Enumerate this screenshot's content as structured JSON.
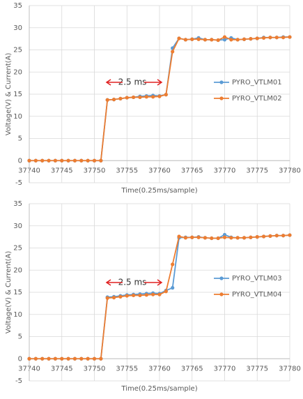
{
  "chart_data": [
    {
      "type": "line",
      "xlabel": "Time(0.25ms/sample)",
      "ylabel": "Voltage(V) & Current(A)",
      "annotation": "2.5 ms",
      "x": [
        37740,
        37741,
        37742,
        37743,
        37744,
        37745,
        37746,
        37747,
        37748,
        37749,
        37750,
        37751,
        37752,
        37753,
        37754,
        37755,
        37756,
        37757,
        37758,
        37759,
        37760,
        37761,
        37762,
        37763,
        37764,
        37765,
        37766,
        37767,
        37768,
        37769,
        37770,
        37771,
        37772,
        37773,
        37774,
        37775,
        37776,
        37777,
        37778,
        37779,
        37780
      ],
      "series": [
        {
          "name": "PYRO_VTLM01",
          "color": "#5b9bd5",
          "values": [
            0,
            0,
            0,
            0,
            0,
            0,
            0,
            0,
            0,
            0,
            0,
            0,
            13.7,
            13.8,
            14.0,
            14.2,
            14.3,
            14.5,
            14.6,
            14.7,
            14.6,
            14.9,
            25.4,
            27.6,
            27.3,
            27.4,
            27.7,
            27.3,
            27.3,
            27.2,
            27.3,
            27.7,
            27.3,
            27.4,
            27.5,
            27.6,
            27.8,
            27.8,
            27.8,
            27.9,
            27.9
          ]
        },
        {
          "name": "PYRO_VTLM02",
          "color": "#ed7d31",
          "values": [
            0,
            0,
            0,
            0,
            0,
            0,
            0,
            0,
            0,
            0,
            0,
            0,
            13.7,
            13.8,
            14.0,
            14.2,
            14.3,
            14.3,
            14.4,
            14.4,
            14.5,
            14.9,
            24.6,
            27.6,
            27.3,
            27.4,
            27.4,
            27.3,
            27.3,
            27.2,
            27.9,
            27.3,
            27.3,
            27.4,
            27.5,
            27.6,
            27.7,
            27.8,
            27.8,
            27.8,
            27.9
          ]
        }
      ],
      "xlim": [
        37740,
        37780
      ],
      "xticks": [
        37740,
        37745,
        37750,
        37755,
        37760,
        37765,
        37770,
        37775,
        37780
      ],
      "ylim": [
        -5,
        35
      ],
      "yticks": [
        -5,
        0,
        5,
        10,
        15,
        20,
        25,
        30,
        35
      ],
      "grid": true
    },
    {
      "type": "line",
      "xlabel": "Time(0.25ms/sample)",
      "ylabel": "Voltage(V) & Current(A)",
      "annotation": "2.5 ms",
      "x": [
        37740,
        37741,
        37742,
        37743,
        37744,
        37745,
        37746,
        37747,
        37748,
        37749,
        37750,
        37751,
        37752,
        37753,
        37754,
        37755,
        37756,
        37757,
        37758,
        37759,
        37760,
        37761,
        37762,
        37763,
        37764,
        37765,
        37766,
        37767,
        37768,
        37769,
        37770,
        37771,
        37772,
        37773,
        37774,
        37775,
        37776,
        37777,
        37778,
        37779,
        37780
      ],
      "series": [
        {
          "name": "PYRO_VTLM03",
          "color": "#5b9bd5",
          "values": [
            0,
            0,
            0,
            0,
            0,
            0,
            0,
            0,
            0,
            0,
            0,
            0,
            13.9,
            14.0,
            14.2,
            14.4,
            14.5,
            14.6,
            14.7,
            14.8,
            14.7,
            15.4,
            16.0,
            27.3,
            27.4,
            27.4,
            27.5,
            27.3,
            27.2,
            27.2,
            28.0,
            27.4,
            27.3,
            27.3,
            27.4,
            27.5,
            27.6,
            27.7,
            27.8,
            27.8,
            27.9
          ]
        },
        {
          "name": "PYRO_VTLM04",
          "color": "#ed7d31",
          "values": [
            0,
            0,
            0,
            0,
            0,
            0,
            0,
            0,
            0,
            0,
            0,
            0,
            13.7,
            13.8,
            14.0,
            14.2,
            14.3,
            14.3,
            14.4,
            14.5,
            14.5,
            15.2,
            21.3,
            27.6,
            27.3,
            27.4,
            27.4,
            27.3,
            27.2,
            27.2,
            27.4,
            27.3,
            27.3,
            27.3,
            27.4,
            27.5,
            27.6,
            27.7,
            27.8,
            27.8,
            27.9
          ]
        }
      ],
      "xlim": [
        37740,
        37780
      ],
      "xticks": [
        37740,
        37745,
        37750,
        37755,
        37760,
        37765,
        37770,
        37775,
        37780
      ],
      "ylim": [
        -5,
        35
      ],
      "yticks": [
        -5,
        0,
        5,
        10,
        15,
        20,
        25,
        30,
        35
      ],
      "grid": true
    }
  ]
}
